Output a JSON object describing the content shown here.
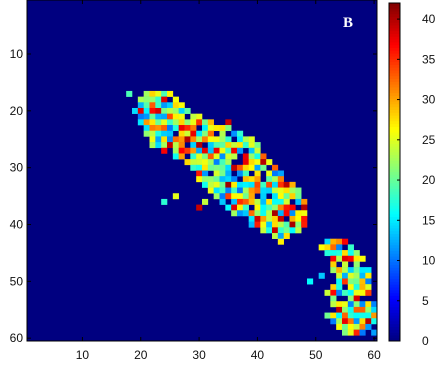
{
  "chart_data": {
    "type": "heatmap",
    "panel_label": "B",
    "title": "",
    "xlabel": "",
    "ylabel": "",
    "grid": false,
    "xlim": [
      1,
      60
    ],
    "ylim": [
      60,
      1
    ],
    "x_ticks": [
      "10",
      "20",
      "30",
      "40",
      "50",
      "60"
    ],
    "y_ticks": [
      "10",
      "20",
      "30",
      "40",
      "50",
      "60"
    ],
    "colorbar": {
      "placement": "right",
      "range": [
        0,
        42
      ],
      "ticks": [
        "0",
        "5",
        "10",
        "15",
        "20",
        "25",
        "30",
        "35",
        "40"
      ]
    },
    "colormap": "jet",
    "background_value": 0,
    "clusters": [
      {
        "rows": [
          [
            17,
            21,
            25
          ],
          [
            18,
            20,
            26
          ],
          [
            19,
            20,
            27
          ],
          [
            20,
            19,
            28
          ],
          [
            21,
            20,
            30
          ],
          [
            22,
            20,
            32
          ],
          [
            23,
            21,
            35
          ],
          [
            24,
            21,
            37
          ],
          [
            25,
            22,
            39
          ],
          [
            26,
            22,
            40
          ],
          [
            27,
            24,
            41
          ],
          [
            28,
            26,
            41
          ],
          [
            29,
            28,
            42
          ],
          [
            30,
            29,
            43
          ],
          [
            31,
            30,
            44
          ],
          [
            32,
            30,
            45
          ],
          [
            33,
            31,
            46
          ],
          [
            34,
            32,
            47
          ],
          [
            35,
            33,
            47
          ],
          [
            36,
            34,
            48
          ],
          [
            37,
            35,
            48
          ],
          [
            38,
            36,
            48
          ],
          [
            39,
            38,
            48
          ],
          [
            40,
            39,
            48
          ],
          [
            41,
            41,
            47
          ],
          [
            42,
            42,
            45
          ],
          [
            43,
            43,
            44
          ]
        ],
        "hotspots": [
          [
            20,
            23
          ],
          [
            25,
            28
          ],
          [
            33,
            35
          ],
          [
            38,
            43
          ],
          [
            40,
            46
          ],
          [
            22,
            35
          ],
          [
            37,
            30
          ],
          [
            30,
            36
          ]
        ]
      },
      {
        "rows": [
          [
            43,
            52,
            55
          ],
          [
            44,
            51,
            56
          ],
          [
            45,
            52,
            57
          ],
          [
            46,
            52,
            58
          ],
          [
            47,
            53,
            58
          ],
          [
            48,
            53,
            59
          ],
          [
            49,
            54,
            59
          ],
          [
            50,
            54,
            59
          ],
          [
            51,
            53,
            60
          ],
          [
            52,
            52,
            60
          ],
          [
            53,
            53,
            60
          ],
          [
            54,
            53,
            60
          ],
          [
            55,
            53,
            60
          ],
          [
            56,
            52,
            60
          ],
          [
            57,
            53,
            60
          ],
          [
            58,
            54,
            60
          ],
          [
            59,
            55,
            60
          ]
        ],
        "hotspots": [
          [
            53,
            57
          ],
          [
            57,
            59
          ],
          [
            55,
            54
          ]
        ]
      }
    ],
    "isolated_points": [
      [
        17,
        18
      ],
      [
        23,
        33
      ],
      [
        36,
        24
      ],
      [
        35,
        26
      ],
      [
        36,
        31
      ],
      [
        50,
        49
      ],
      [
        49,
        51
      ]
    ]
  }
}
